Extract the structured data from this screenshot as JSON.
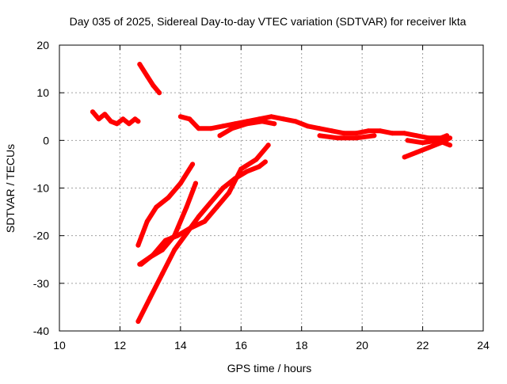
{
  "chart_data": {
    "type": "line",
    "title": "Day 035 of 2025, Sidereal Day-to-day VTEC variation (SDTVAR) for receiver lkta",
    "xlabel": "GPS time / hours",
    "ylabel": "SDTVAR / TECUs",
    "xlim": [
      10,
      24
    ],
    "ylim": [
      -40,
      20
    ],
    "xticks": [
      "10",
      "12",
      "14",
      "16",
      "18",
      "20",
      "22",
      "24"
    ],
    "yticks": [
      "20",
      "10",
      "0",
      "-10",
      "-20",
      "-30",
      "-40"
    ],
    "grid": true,
    "legend": "none",
    "series_color": "#ff0000",
    "series": [
      {
        "x": [
          11.1,
          11.3,
          11.5,
          11.7,
          11.9,
          12.1,
          12.3,
          12.5,
          12.6
        ],
        "y": [
          6,
          4.5,
          5.5,
          4,
          3.5,
          4.5,
          3.5,
          4.5,
          4
        ]
      },
      {
        "x": [
          12.65,
          12.9,
          13.1,
          13.3
        ],
        "y": [
          16,
          13.5,
          11.5,
          10
        ]
      },
      {
        "x": [
          14.0,
          14.3,
          14.6,
          15.0,
          15.4,
          15.8,
          16.2,
          16.6,
          17.0,
          17.4,
          17.8,
          18.2,
          18.6,
          19.0,
          19.4,
          19.8,
          20.2,
          20.6,
          21.0,
          21.4,
          21.8,
          22.2,
          22.6,
          22.8
        ],
        "y": [
          5,
          4.5,
          2.5,
          2.5,
          3,
          3.5,
          4,
          4.5,
          5,
          4.5,
          4,
          3,
          2.5,
          2,
          1.5,
          1.5,
          2,
          2,
          1.5,
          1.5,
          1,
          0.5,
          0.5,
          1
        ]
      },
      {
        "x": [
          18.6,
          19.2,
          19.8,
          20.4
        ],
        "y": [
          1,
          0.5,
          0.5,
          1
        ]
      },
      {
        "x": [
          15.3,
          15.7,
          16.2,
          16.7,
          17.1
        ],
        "y": [
          1,
          2.5,
          3.5,
          4,
          3.5
        ]
      },
      {
        "x": [
          21.4,
          21.8,
          22.2,
          22.6,
          22.9
        ],
        "y": [
          -3.5,
          -2.5,
          -1.5,
          -0.5,
          0.5
        ]
      },
      {
        "x": [
          21.5,
          22.0,
          22.5,
          22.9
        ],
        "y": [
          0,
          -0.5,
          0,
          -1
        ]
      },
      {
        "x": [
          12.6,
          12.9,
          13.2,
          13.6,
          14.0,
          14.4
        ],
        "y": [
          -22,
          -17,
          -14,
          -12,
          -9,
          -5
        ]
      },
      {
        "x": [
          12.65,
          13.0,
          13.4,
          13.8,
          14.2,
          14.5
        ],
        "y": [
          -26,
          -24.5,
          -23,
          -20,
          -14,
          -9
        ]
      },
      {
        "x": [
          12.7,
          13.1,
          13.5,
          13.9,
          14.3,
          14.8,
          15.2,
          15.6,
          16.0,
          16.5,
          16.9
        ],
        "y": [
          -26,
          -24,
          -21,
          -20,
          -18.5,
          -17,
          -14,
          -11,
          -6,
          -4,
          -1
        ]
      },
      {
        "x": [
          12.6,
          13.0,
          13.4,
          13.8,
          14.2,
          14.6,
          15.0,
          15.4,
          15.8,
          16.2,
          16.6,
          16.8
        ],
        "y": [
          -38,
          -33,
          -28,
          -23,
          -19.5,
          -16,
          -13,
          -10,
          -8,
          -6.5,
          -5.5,
          -4.5
        ]
      }
    ]
  }
}
